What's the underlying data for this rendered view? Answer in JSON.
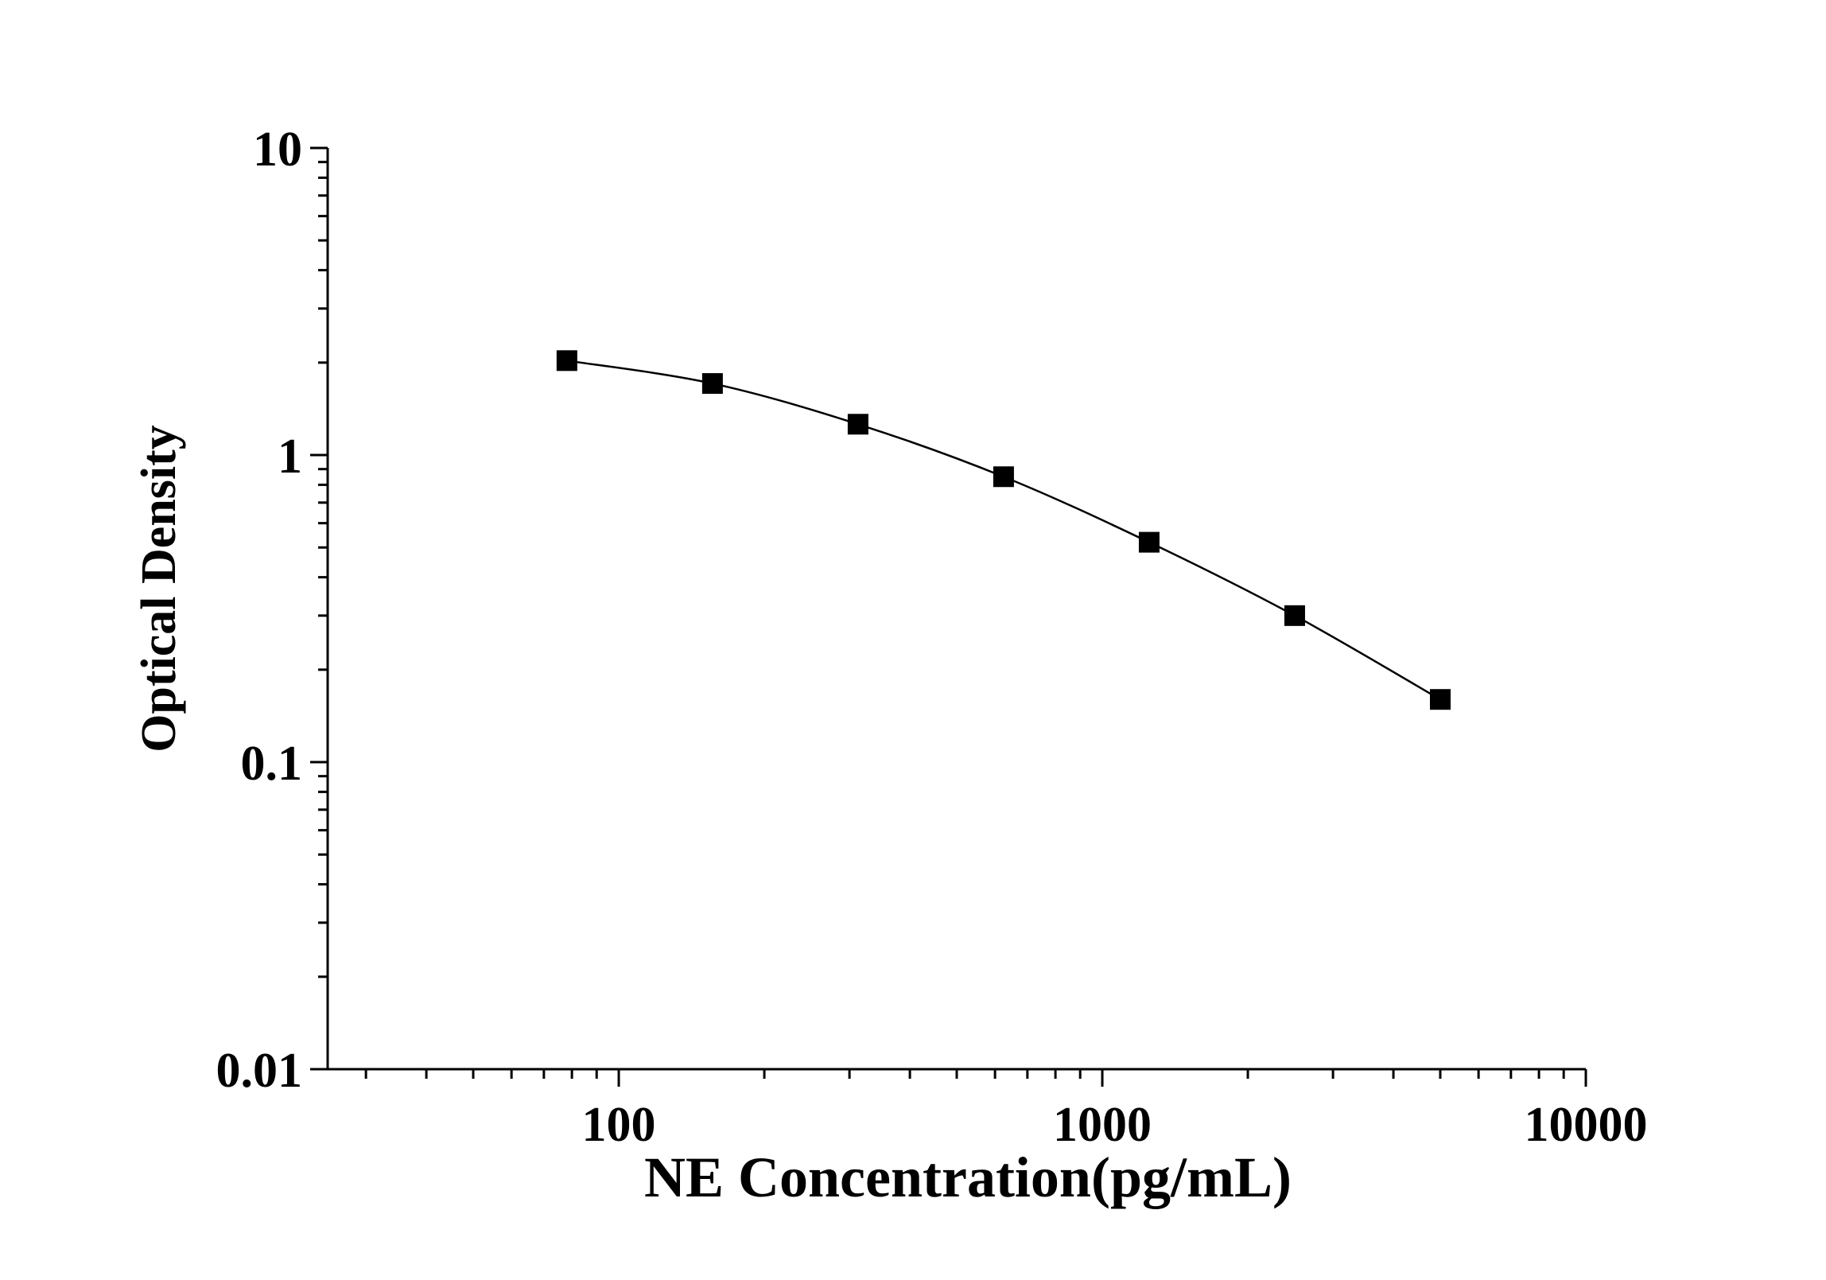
{
  "chart_data": {
    "type": "line",
    "title": "",
    "xlabel": "NE Concentration(pg/mL)",
    "ylabel": "Optical Density",
    "x_scale": "log",
    "y_scale": "log",
    "xlim": [
      25,
      10000
    ],
    "ylim": [
      0.01,
      10
    ],
    "x_ticks": [
      {
        "value": 100,
        "label": "100"
      },
      {
        "value": 1000,
        "label": "1000"
      },
      {
        "value": 10000,
        "label": "10000"
      }
    ],
    "y_ticks": [
      {
        "value": 0.01,
        "label": "0.01"
      },
      {
        "value": 0.1,
        "label": "0.1"
      },
      {
        "value": 1,
        "label": "1"
      },
      {
        "value": 10,
        "label": "10"
      }
    ],
    "grid": false,
    "legend": "none",
    "marker": "square",
    "series": [
      {
        "x": [
          78.125,
          156.25,
          312.5,
          625,
          1250,
          2500,
          5000
        ],
        "y": [
          2.03,
          1.71,
          1.26,
          0.85,
          0.52,
          0.3,
          0.16
        ],
        "color": "#000000"
      }
    ]
  }
}
